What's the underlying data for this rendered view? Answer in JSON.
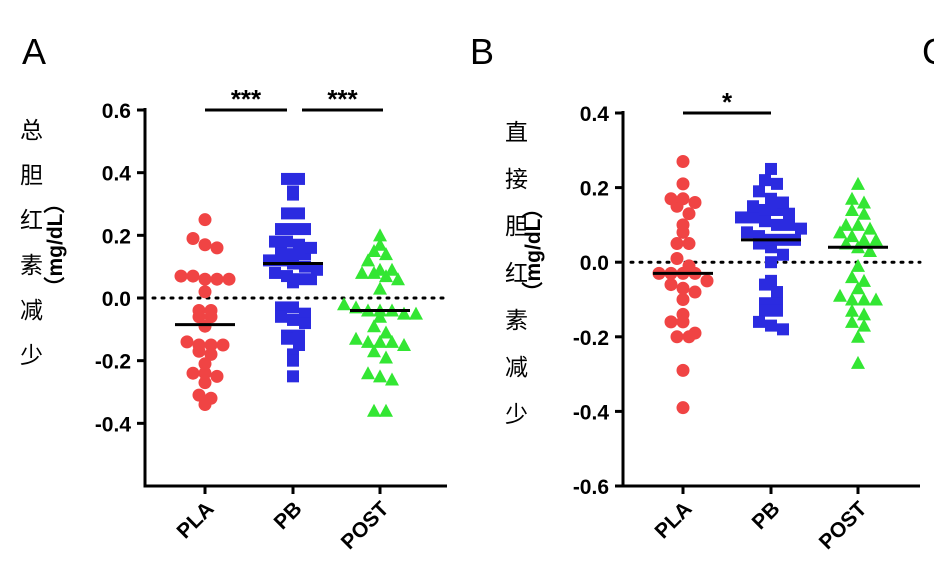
{
  "chart_data": [
    {
      "type": "scatter",
      "panel_label": "A",
      "title": "",
      "ylabel_cn": [
        "总",
        "胆",
        "红",
        "素",
        "减",
        "少"
      ],
      "ylabel_unit": "（mg/dL）",
      "xlabel": "",
      "categories": [
        "PLA",
        "PB",
        "POST"
      ],
      "ylim": [
        -0.6,
        0.6
      ],
      "yticks": [
        0.6,
        0.4,
        0.2,
        0.0,
        -0.2,
        -0.4
      ],
      "ytick_labels": [
        "0.6",
        "0.4",
        "0.2",
        "0.0",
        "-0.2",
        "-0.4"
      ],
      "reference_line": 0,
      "grid": false,
      "series": [
        {
          "name": "PLA",
          "marker": "circle",
          "color": "#f04444",
          "median": -0.085,
          "values": [
            0.25,
            0.19,
            0.17,
            0.16,
            0.07,
            0.07,
            0.06,
            0.06,
            0.06,
            0.02,
            -0.04,
            -0.04,
            -0.06,
            -0.06,
            -0.09,
            -0.14,
            -0.15,
            -0.15,
            -0.15,
            -0.17,
            -0.18,
            -0.21,
            -0.24,
            -0.24,
            -0.25,
            -0.27,
            -0.31,
            -0.32,
            -0.34
          ]
        },
        {
          "name": "PB",
          "marker": "square",
          "color": "#2b2be0",
          "median": 0.11,
          "values": [
            0.38,
            0.38,
            0.34,
            0.33,
            0.27,
            0.27,
            0.22,
            0.22,
            0.22,
            0.18,
            0.18,
            0.17,
            0.16,
            0.15,
            0.14,
            0.14,
            0.12,
            0.12,
            0.11,
            0.1,
            0.09,
            0.08,
            0.07,
            0.06,
            0.06,
            0.05,
            -0.03,
            -0.03,
            -0.05,
            -0.06,
            -0.07,
            -0.08,
            -0.12,
            -0.12,
            -0.13,
            -0.15,
            -0.18,
            -0.2,
            -0.25
          ]
        },
        {
          "name": "POST",
          "marker": "triangle",
          "color": "#33e633",
          "median": -0.04,
          "values": [
            0.2,
            0.17,
            0.15,
            0.14,
            0.12,
            0.09,
            0.09,
            0.08,
            0.08,
            0.07,
            0.06,
            0.03,
            -0.02,
            -0.03,
            -0.04,
            -0.04,
            -0.04,
            -0.05,
            -0.05,
            -0.06,
            -0.09,
            -0.11,
            -0.13,
            -0.14,
            -0.14,
            -0.14,
            -0.15,
            -0.17,
            -0.19,
            -0.24,
            -0.25,
            -0.26,
            -0.36,
            -0.36
          ]
        }
      ],
      "significance": [
        {
          "from": "PLA",
          "to": "PB",
          "label": "***"
        },
        {
          "from": "PB",
          "to": "POST",
          "label": "***"
        }
      ]
    },
    {
      "type": "scatter",
      "panel_label": "B",
      "title": "",
      "ylabel_cn": [
        "直",
        "接",
        "胆",
        "红",
        "素",
        "减",
        "少"
      ],
      "ylabel_unit": "（mg/dL）",
      "xlabel": "",
      "categories": [
        "PLA",
        "PB",
        "POST"
      ],
      "ylim": [
        -0.6,
        0.4
      ],
      "yticks": [
        0.4,
        0.2,
        0.0,
        -0.2,
        -0.4,
        -0.6
      ],
      "ytick_labels": [
        "0.4",
        "0.2",
        "0.0",
        "-0.2",
        "-0.4",
        "-0.6"
      ],
      "reference_line": 0,
      "grid": false,
      "series": [
        {
          "name": "PLA",
          "marker": "circle",
          "color": "#f04444",
          "median": -0.03,
          "values": [
            0.27,
            0.21,
            0.17,
            0.17,
            0.16,
            0.15,
            0.13,
            0.1,
            0.08,
            0.05,
            0.05,
            0.01,
            -0.01,
            -0.03,
            -0.03,
            -0.03,
            -0.03,
            -0.05,
            -0.06,
            -0.07,
            -0.08,
            -0.1,
            -0.14,
            -0.16,
            -0.16,
            -0.19,
            -0.2,
            -0.2,
            -0.29,
            -0.39
          ]
        },
        {
          "name": "PB",
          "marker": "square",
          "color": "#2b2be0",
          "median": 0.06,
          "values": [
            0.25,
            0.22,
            0.21,
            0.19,
            0.17,
            0.16,
            0.15,
            0.14,
            0.14,
            0.13,
            0.12,
            0.12,
            0.11,
            0.1,
            0.1,
            0.09,
            0.08,
            0.07,
            0.06,
            0.06,
            0.06,
            0.05,
            0.04,
            0.02,
            0.0,
            -0.05,
            -0.06,
            -0.08,
            -0.11,
            -0.11,
            -0.13,
            -0.13,
            -0.16,
            -0.17,
            -0.18
          ]
        },
        {
          "name": "POST",
          "marker": "triangle",
          "color": "#33e633",
          "median": 0.04,
          "values": [
            0.21,
            0.17,
            0.16,
            0.14,
            0.13,
            0.1,
            0.1,
            0.09,
            0.08,
            0.07,
            0.06,
            0.06,
            0.05,
            0.04,
            0.03,
            -0.01,
            -0.04,
            -0.05,
            -0.07,
            -0.09,
            -0.1,
            -0.1,
            -0.1,
            -0.13,
            -0.14,
            -0.16,
            -0.17,
            -0.2,
            -0.27
          ]
        }
      ],
      "significance": [
        {
          "from": "PLA",
          "to": "PB",
          "label": "*"
        }
      ]
    }
  ],
  "next_panel_label": "C"
}
